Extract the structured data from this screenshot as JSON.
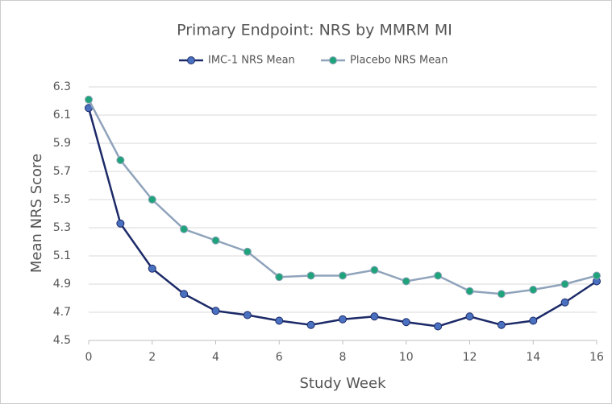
{
  "chart_data": {
    "type": "line",
    "title": "Primary Endpoint: NRS by MMRM MI",
    "xlabel": "Study Week",
    "ylabel": "Mean NRS Score",
    "x": [
      0,
      1,
      2,
      3,
      4,
      5,
      6,
      7,
      8,
      9,
      10,
      11,
      12,
      13,
      14,
      15,
      16
    ],
    "series": [
      {
        "name": "IMC-1 NRS Mean",
        "color": "#1c2a68",
        "marker_color": "#4a70c0",
        "values": [
          6.15,
          5.33,
          5.01,
          4.83,
          4.71,
          4.68,
          4.64,
          4.61,
          4.65,
          4.67,
          4.63,
          4.6,
          4.67,
          4.61,
          4.64,
          4.77,
          4.92
        ]
      },
      {
        "name": "Placebo NRS Mean",
        "color": "#8fa3bb",
        "marker_color": "#1fa37a",
        "values": [
          6.21,
          5.78,
          5.5,
          5.29,
          5.21,
          5.13,
          4.95,
          4.96,
          4.96,
          5.0,
          4.92,
          4.96,
          4.85,
          4.83,
          4.86,
          4.9,
          4.96
        ]
      }
    ],
    "xlim": [
      0,
      16
    ],
    "xticks": [
      0,
      2,
      4,
      6,
      8,
      10,
      12,
      14,
      16
    ],
    "ylim": [
      4.5,
      6.3
    ],
    "yticks": [
      4.5,
      4.7,
      4.9,
      5.1,
      5.3,
      5.5,
      5.7,
      5.9,
      6.1,
      6.3
    ],
    "grid": true,
    "legend": "top"
  }
}
